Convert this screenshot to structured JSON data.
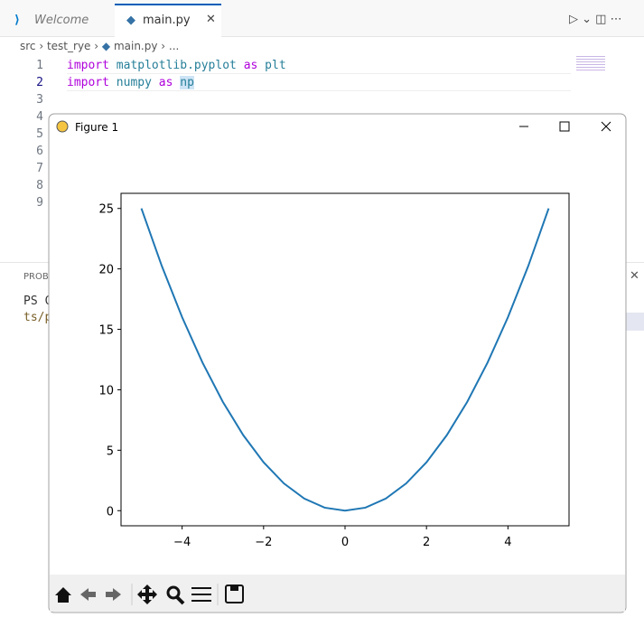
{
  "tabs": [
    "Welcome",
    "main.py"
  ],
  "breadcrumb": [
    "src",
    "test_rye",
    "main.py",
    "..."
  ],
  "line_numbers": [
    "1",
    "2",
    "3",
    "4",
    "5",
    "6",
    "7",
    "8",
    "9"
  ],
  "code": [
    [
      "import",
      "matplotlib.pyplot",
      "as",
      "plt"
    ],
    [
      "import",
      "numpy",
      "as",
      "np"
    ]
  ],
  "panel": {
    "tab": "PROB",
    "terminal": [
      "PS C",
      "ts/p"
    ]
  },
  "window": {
    "title": "Figure 1"
  },
  "chart_data": {
    "type": "line",
    "x": [
      -5,
      -4.5,
      -4,
      -3.5,
      -3,
      -2.5,
      -2,
      -1.5,
      -1,
      -0.5,
      0,
      0.5,
      1,
      1.5,
      2,
      2.5,
      3,
      3.5,
      4,
      4.5,
      5
    ],
    "series": [
      {
        "color": "#1f77b4",
        "values": [
          25,
          20.25,
          16,
          12.25,
          9,
          6.25,
          4,
          2.25,
          1,
          0.25,
          0,
          0.25,
          1,
          2.25,
          4,
          6.25,
          9,
          12.25,
          16,
          20.25,
          25
        ]
      }
    ],
    "xlim": [
      -5.5,
      5.5
    ],
    "ylim": [
      -1.25,
      26.25
    ],
    "xticks": [
      {
        "value": -4,
        "label": "−4"
      },
      {
        "value": -2,
        "label": "−2"
      },
      0,
      2,
      4
    ],
    "yticks": [
      0,
      5,
      10,
      15,
      20,
      25
    ]
  }
}
